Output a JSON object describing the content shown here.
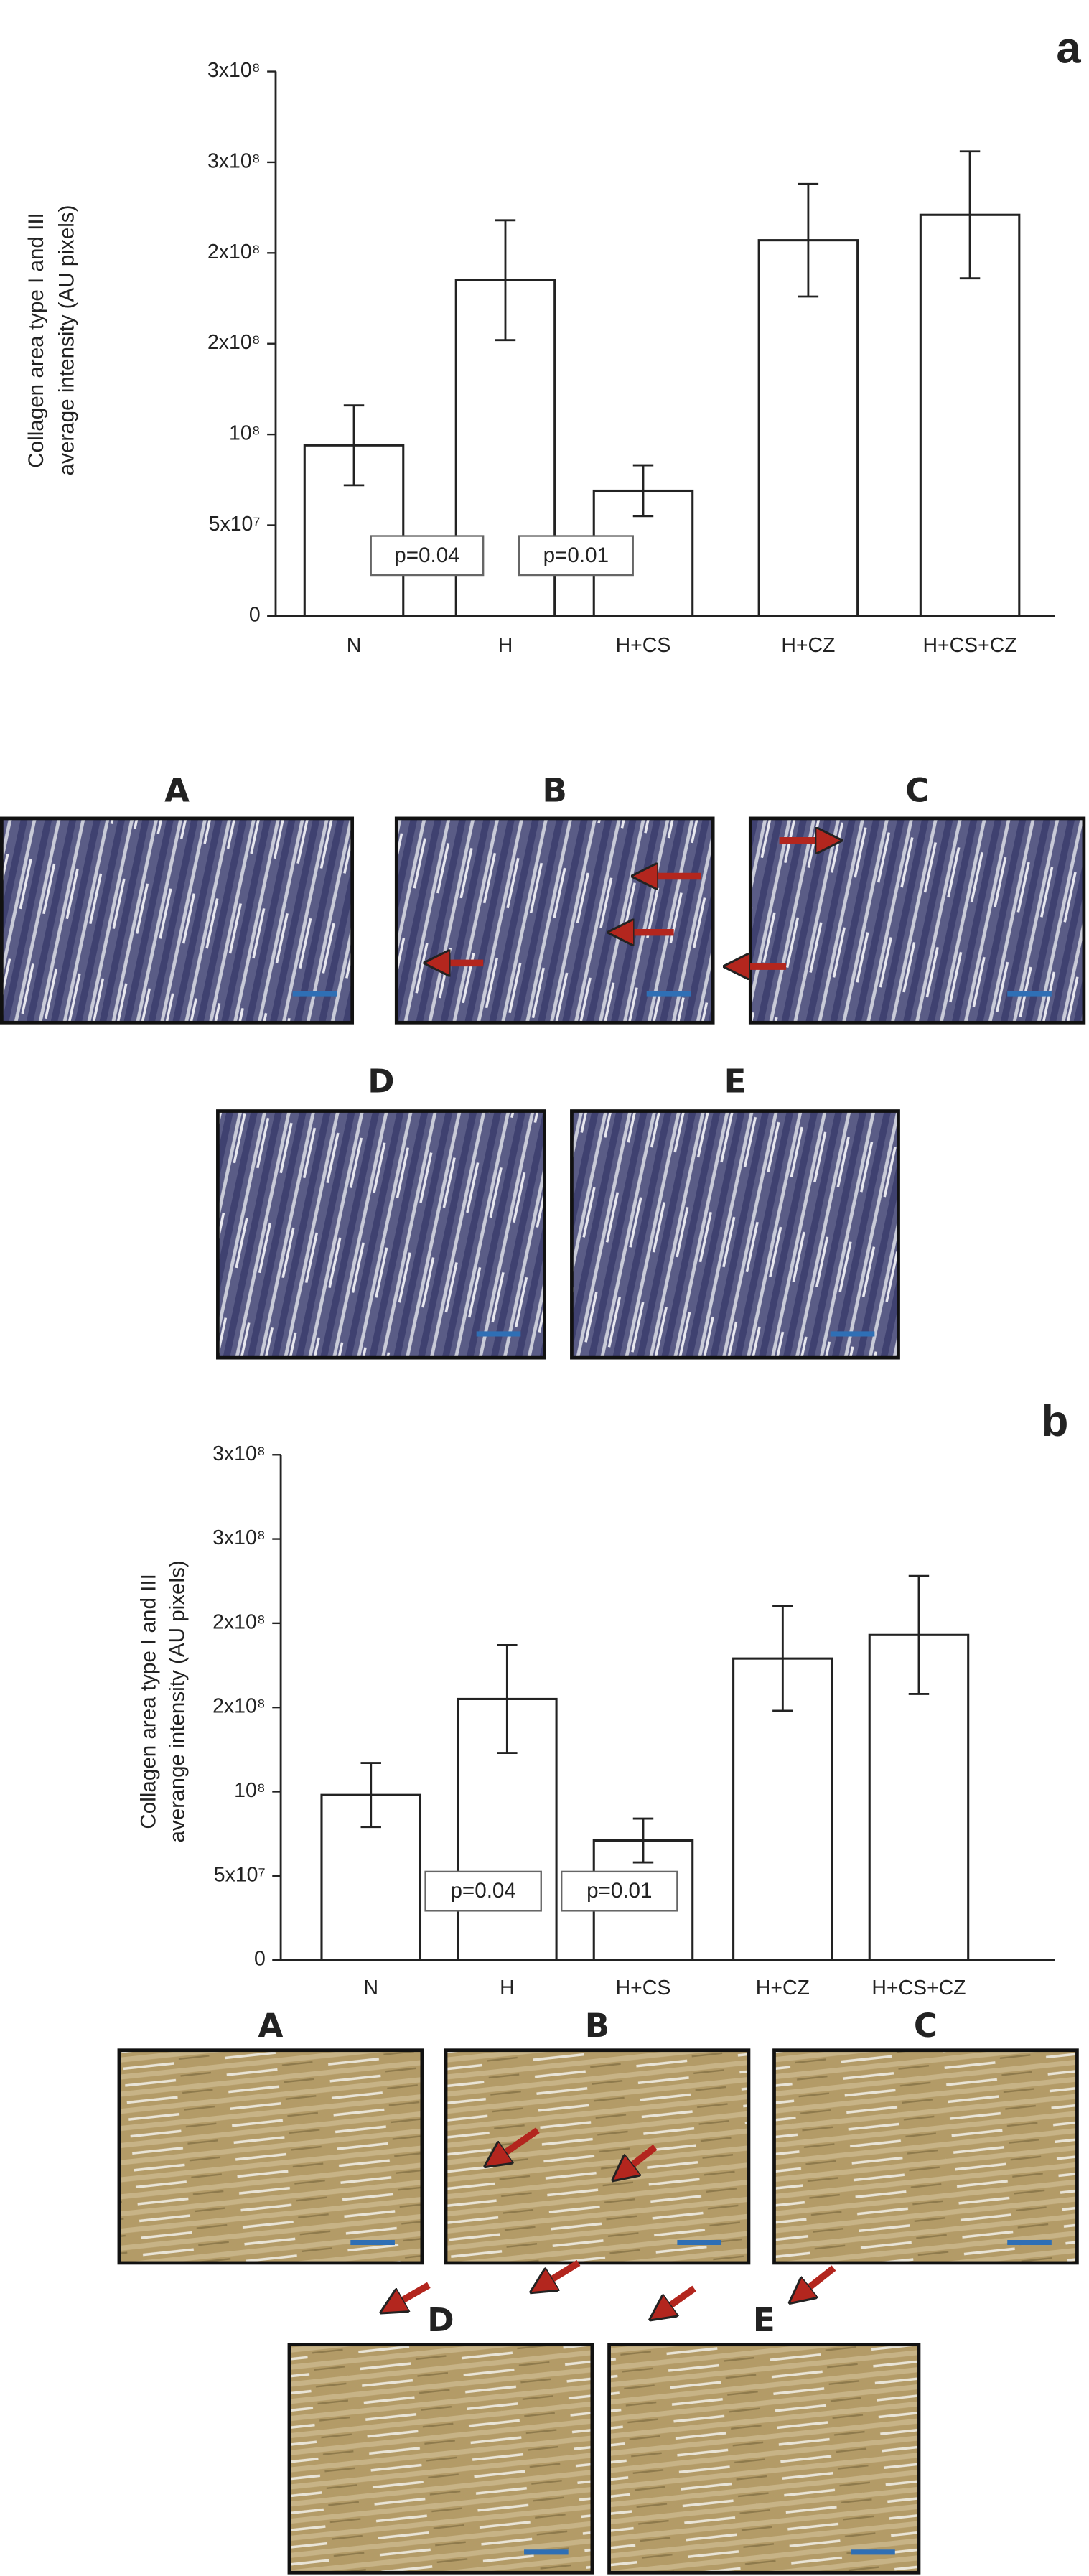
{
  "chart_data": [
    {
      "type": "bar",
      "panel_label": "a",
      "y_label": [
        "Collagen area type I and III",
        "average intensity (AU pixels)"
      ],
      "categories": [
        "N",
        "H",
        "H+CS",
        "H+CZ",
        "H+CS+CZ"
      ],
      "values": [
        94000000,
        185000000,
        69000000,
        207000000,
        221000000
      ],
      "errors": [
        22000000,
        33000000,
        14000000,
        31000000,
        35000000
      ],
      "color": "#ffffff",
      "ylim": [
        0,
        300000000
      ],
      "yticks": [
        0,
        {
          "value": 50000000,
          "label": "5x10⁷"
        },
        {
          "value": 100000000,
          "label": "10⁸"
        },
        {
          "value": 150000000,
          "label": "2x10⁸"
        },
        {
          "value": 200000000,
          "label": "2x10⁸"
        },
        {
          "value": 250000000,
          "label": "3x10⁸"
        },
        {
          "value": 300000000,
          "label": "3x10⁸"
        }
      ],
      "annotations": [
        "p=0.04",
        "p=0.01"
      ]
    },
    {
      "type": "bar",
      "panel_label": "b",
      "y_label": [
        "Collagen area type I and III",
        "averange intensity (AU pixels)"
      ],
      "categories": [
        "N",
        "H",
        "H+CS",
        "H+CZ",
        "H+CS+CZ"
      ],
      "values": [
        98000000,
        155000000,
        71000000,
        179000000,
        193000000
      ],
      "errors": [
        19000000,
        32000000,
        13000000,
        31000000,
        35000000
      ],
      "color": "#ffffff",
      "ylim": [
        0,
        300000000
      ],
      "yticks": [
        0,
        {
          "value": 50000000,
          "label": "5x10⁷"
        },
        {
          "value": 100000000,
          "label": "10⁸"
        },
        {
          "value": 150000000,
          "label": "2x10⁸"
        },
        {
          "value": 200000000,
          "label": "2x10⁸"
        },
        {
          "value": 250000000,
          "label": "3x10⁸"
        },
        {
          "value": 300000000,
          "label": "3x10⁸"
        }
      ],
      "annotations": [
        "p=0.04",
        "p=0.01"
      ]
    }
  ],
  "micrographs": [
    {
      "panels": [
        "A",
        "B",
        "C",
        "D",
        "E"
      ]
    },
    {
      "panels": [
        "A",
        "B",
        "C",
        "D",
        "E"
      ]
    }
  ]
}
